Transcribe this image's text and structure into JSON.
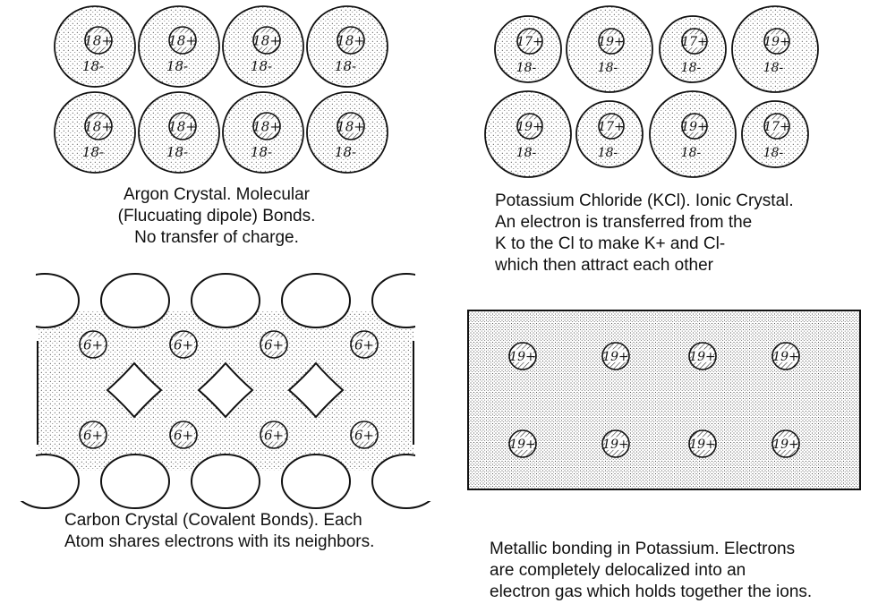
{
  "argon": {
    "ion_charge": "18+",
    "electron_charge": "18-",
    "caption": [
      "Argon Crystal.  Molecular",
      "(Flucuating dipole) Bonds.",
      "No transfer of charge."
    ]
  },
  "kcl": {
    "k_ion_charge": "19+",
    "k_electron_charge": "18-",
    "cl_ion_charge": "17+",
    "cl_electron_charge": "18-",
    "rows": [
      [
        "Cl",
        "K",
        "Cl",
        "K"
      ],
      [
        "K",
        "Cl",
        "K",
        "Cl"
      ]
    ],
    "caption": [
      "Potassium Chloride (KCl).  Ionic Crystal.",
      "An electron is transferred from the",
      "K to the Cl to make  K+ and Cl-",
      "which then attract each other"
    ]
  },
  "carbon": {
    "ion_charge": "6+",
    "caption": [
      "Carbon Crystal (Covalent Bonds).  Each",
      "Atom shares electrons with its neighbors."
    ]
  },
  "metal": {
    "ion_charge": "19+",
    "caption": [
      "Metallic bonding in Potassium.  Electrons",
      "are completely delocalized into an",
      "electron gas which holds together the ions."
    ]
  },
  "colors": {
    "ink": "#111111",
    "paper": "#ffffff"
  }
}
